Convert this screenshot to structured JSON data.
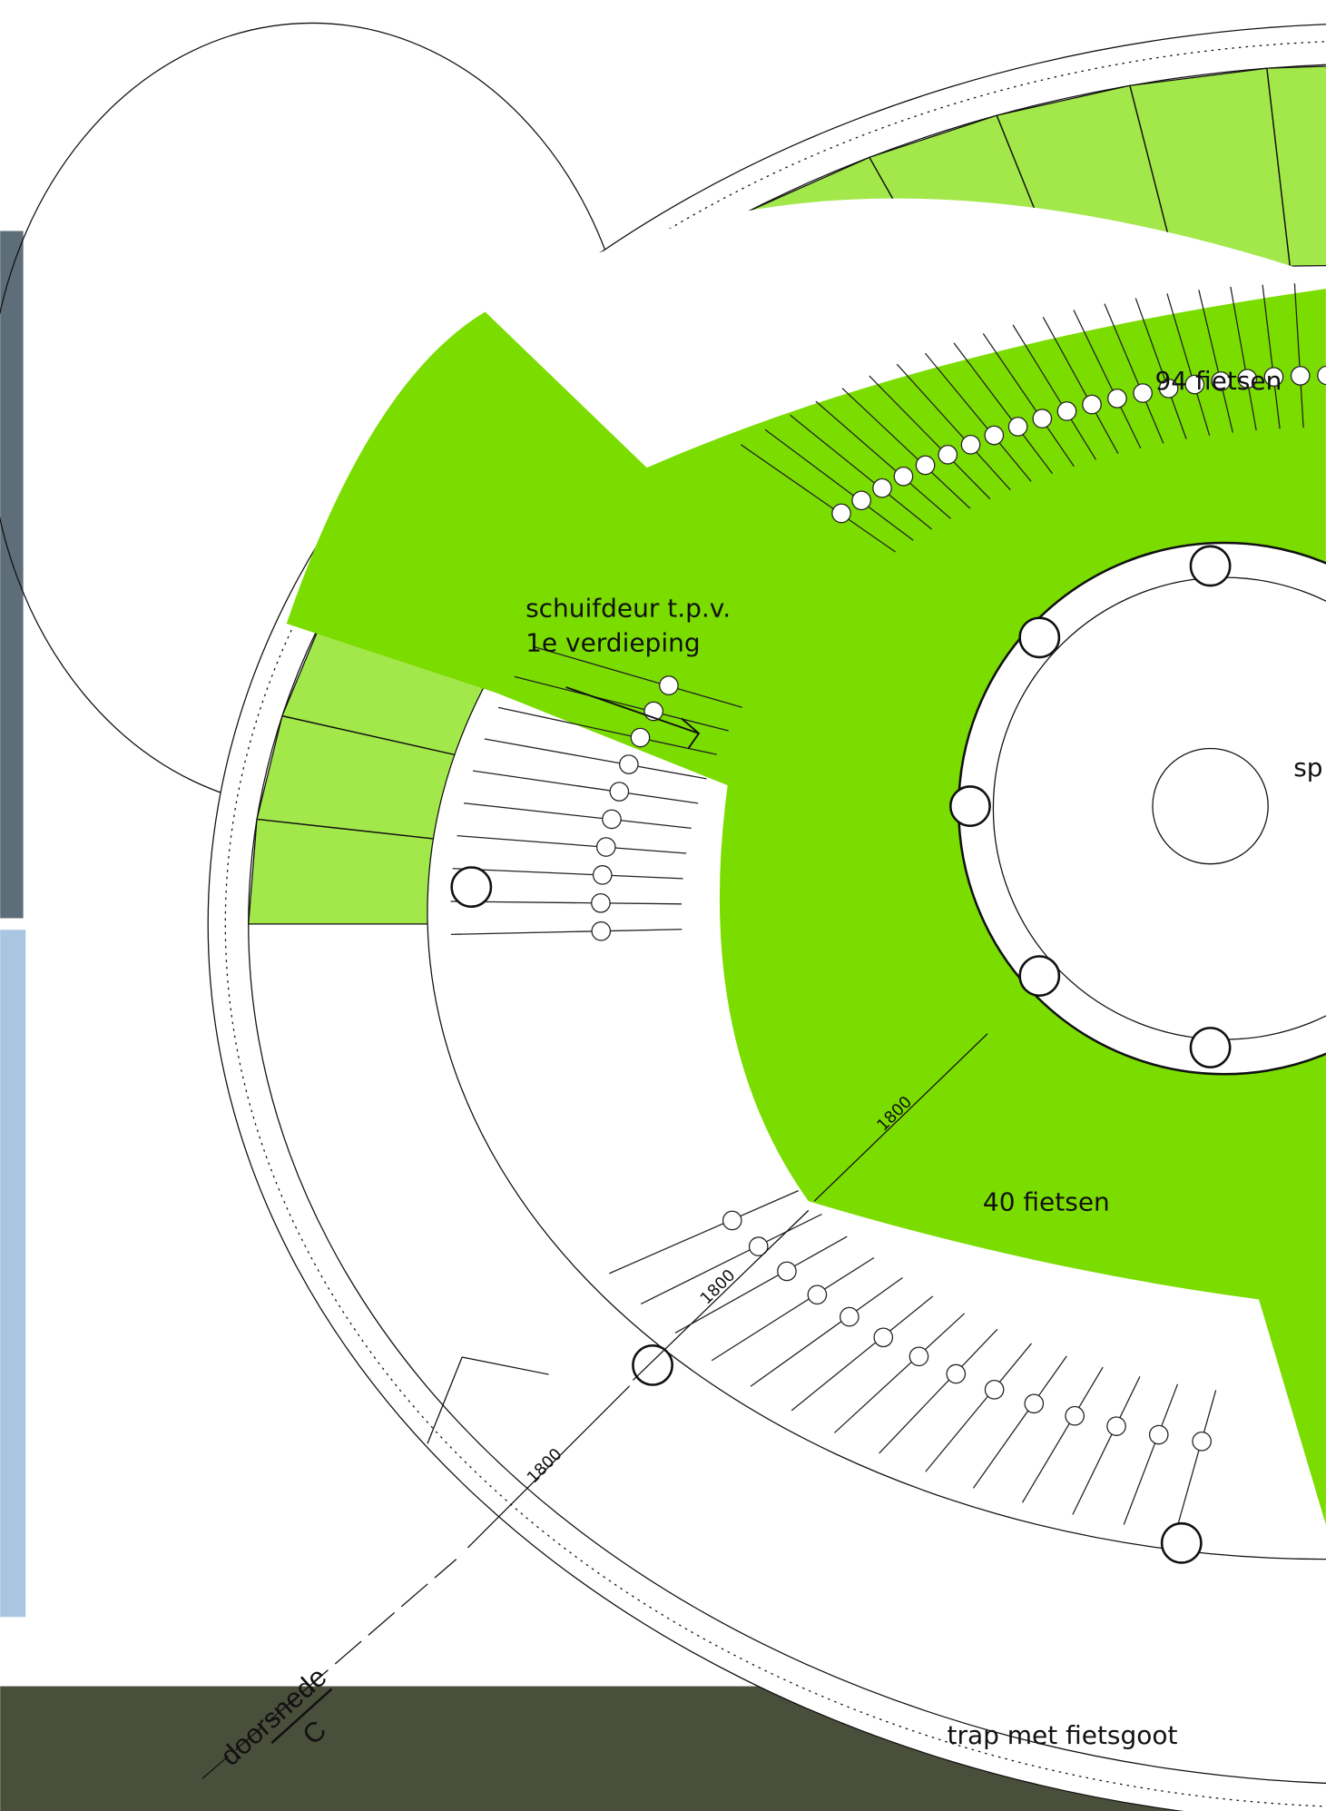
{
  "labels": {
    "upper_count": "94 fietsen",
    "door_line1": "schuifdeur t.p.v.",
    "door_line2": "1e verdieping",
    "core": "sp",
    "lower_count": "40 fietsen",
    "dim_a": "1800",
    "dim_b": "1800",
    "dim_c": "1800",
    "stair": "trap met fietsgoot",
    "section": "doorsnede",
    "section_id": "C"
  }
}
